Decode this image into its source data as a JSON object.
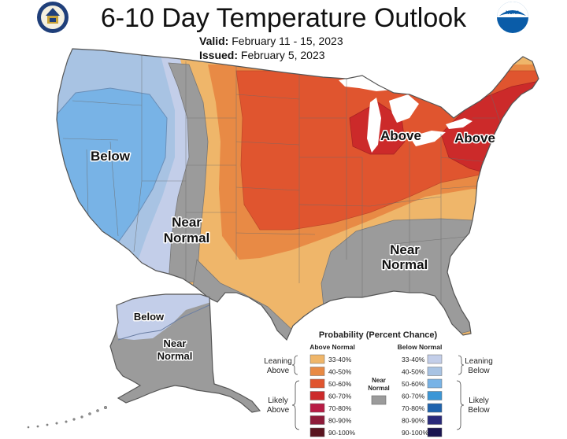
{
  "title": "6-10 Day Temperature Outlook",
  "valid_label": "Valid:",
  "valid_value": "February 11 - 15, 2023",
  "issued_label": "Issued:",
  "issued_value": "February 5, 2023",
  "logos": {
    "left": "Department of Commerce seal",
    "right": "NOAA logo",
    "right_text": "NOAA"
  },
  "regions": {
    "west": "Below",
    "near_normal_rockies": [
      "Near",
      "Normal"
    ],
    "great_lakes": "Above",
    "northeast": "Above",
    "southeast": [
      "Near",
      "Normal"
    ],
    "alaska_north": "Below",
    "alaska_south": [
      "Near",
      "Normal"
    ]
  },
  "legend": {
    "title": "Probability (Percent Chance)",
    "above_header": "Above Normal",
    "below_header": "Below Normal",
    "leaning_above": [
      "Leaning",
      "Above"
    ],
    "likely_above": [
      "Likely",
      "Above"
    ],
    "leaning_below": [
      "Leaning",
      "Below"
    ],
    "likely_below": [
      "Likely",
      "Below"
    ],
    "near_normal": [
      "Near",
      "Normal"
    ],
    "above_bins": [
      {
        "label": "33-40%",
        "color": "#efb66a"
      },
      {
        "label": "40-50%",
        "color": "#e88a45"
      },
      {
        "label": "50-60%",
        "color": "#e0552f"
      },
      {
        "label": "60-70%",
        "color": "#cc2a2a"
      },
      {
        "label": "70-80%",
        "color": "#b81c45"
      },
      {
        "label": "80-90%",
        "color": "#8e1c3a"
      },
      {
        "label": "90-100%",
        "color": "#5a1520"
      }
    ],
    "below_bins": [
      {
        "label": "33-40%",
        "color": "#c3cee9"
      },
      {
        "label": "40-50%",
        "color": "#a8c3e3"
      },
      {
        "label": "50-60%",
        "color": "#78b3e6"
      },
      {
        "label": "60-70%",
        "color": "#3b96d6"
      },
      {
        "label": "70-80%",
        "color": "#1f63ad"
      },
      {
        "label": "80-90%",
        "color": "#2a2a7a"
      },
      {
        "label": "90-100%",
        "color": "#1a1550"
      }
    ],
    "near_color": "#9b9b9b"
  }
}
